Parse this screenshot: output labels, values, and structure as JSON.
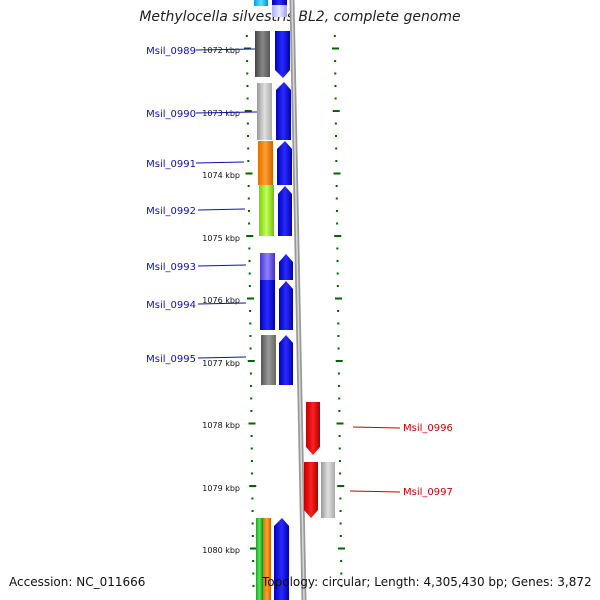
{
  "title": "Methylocella silvestris BL2, complete genome",
  "accession": "Accession: NC_011666",
  "topology": "Topology: circular; Length: 4,305,430 bp; Genes: 3,872",
  "kbp_labels": [
    "1072 kbp",
    "1073 kbp",
    "1074 kbp",
    "1075 kbp",
    "1076 kbp",
    "1077 kbp",
    "1078 kbp",
    "1079 kbp",
    "1080 kbp"
  ],
  "gene_labels": [
    "Msil_0989",
    "Msil_0990",
    "Msil_0991",
    "Msil_0992",
    "Msil_0993",
    "Msil_0994",
    "Msil_0995",
    "Msil_0996",
    "Msil_0997"
  ],
  "colors": {
    "forward_label": "#1010b0",
    "reverse_label": "#cc0000",
    "cds": "#0000ff",
    "reverse_cds": "#ff0000",
    "tick": "#006600",
    "backbone": "#888888"
  }
}
